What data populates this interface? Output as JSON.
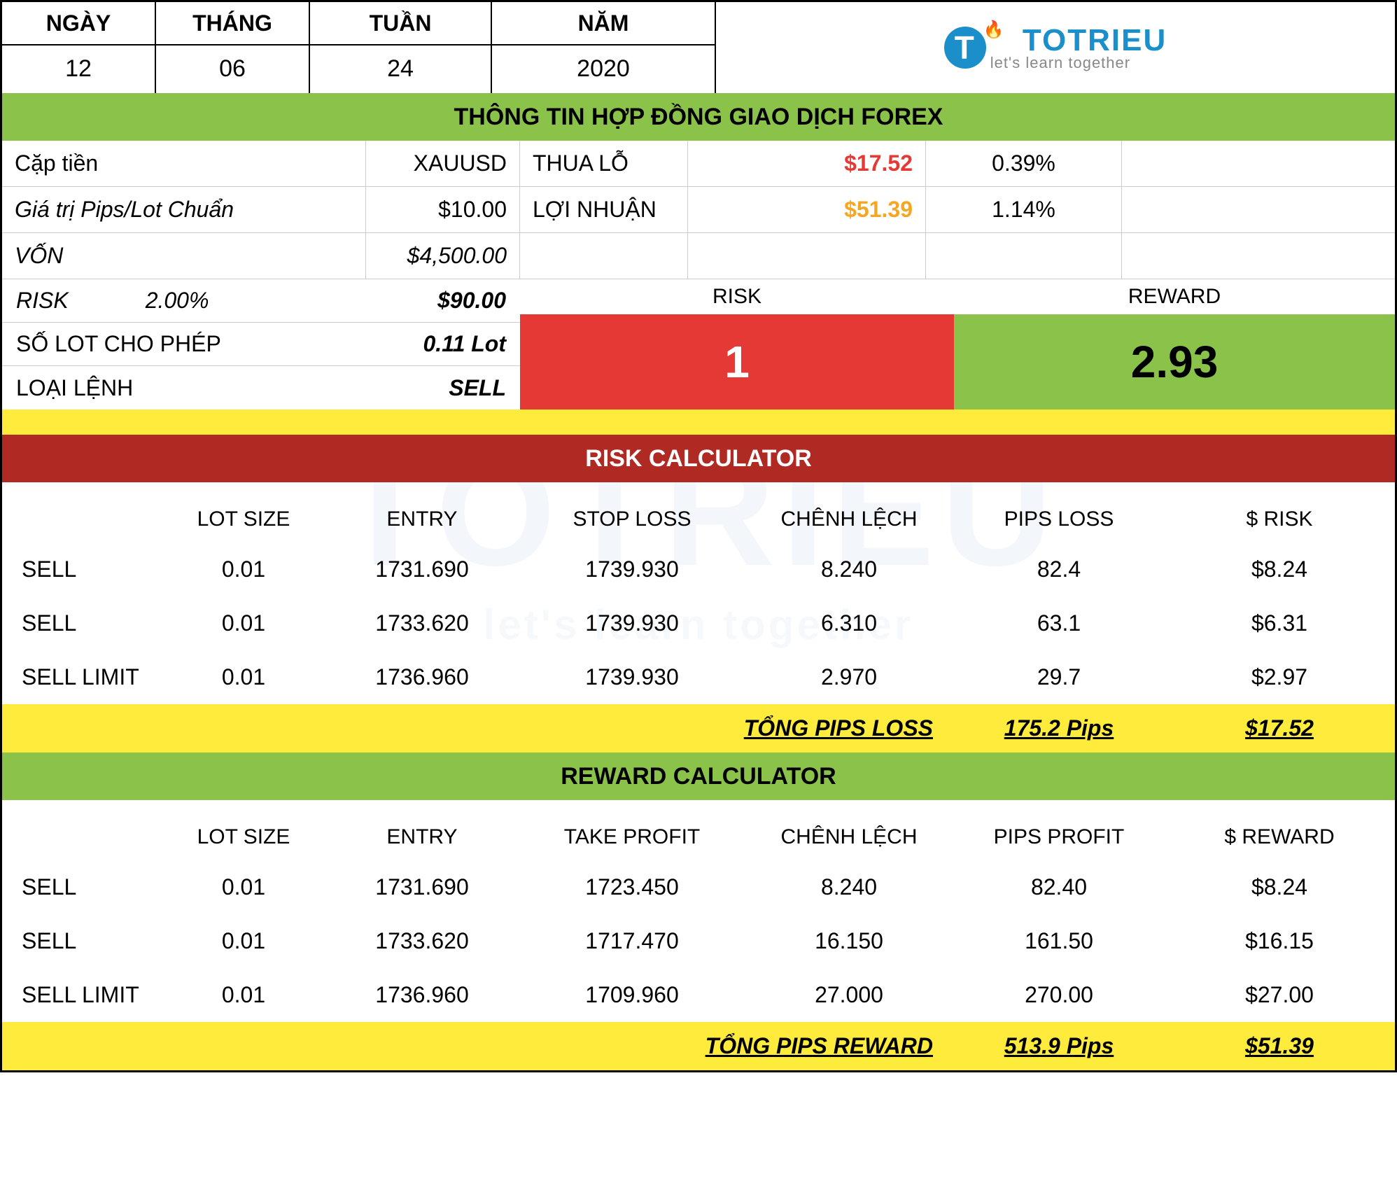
{
  "date": {
    "labels": {
      "day": "NGÀY",
      "month": "THÁNG",
      "week": "TUẦN",
      "year": "NĂM"
    },
    "values": {
      "day": "12",
      "month": "06",
      "week": "24",
      "year": "2020"
    }
  },
  "logo": {
    "name": "TOTRIEU",
    "tag": "let's learn together"
  },
  "section_titles": {
    "contract": "THÔNG TIN HỢP ĐỒNG GIAO DỊCH FOREX",
    "risk_calc": "RISK CALCULATOR",
    "reward_calc": "REWARD CALCULATOR"
  },
  "contract": {
    "pair_label": "Cặp tiền",
    "pair_value": "XAUUSD",
    "loss_label": "THUA LỖ",
    "loss_value": "$17.52",
    "loss_pct": "0.39%",
    "pip_label": "Giá trị Pips/Lot Chuẩn",
    "pip_value": "$10.00",
    "profit_label": "LỢI NHUẬN",
    "profit_value": "$51.39",
    "profit_pct": "1.14%",
    "capital_label": "VỐN",
    "capital_value": "$4,500.00",
    "risk_label": "RISK",
    "risk_pct": "2.00%",
    "risk_value": "$90.00",
    "lot_label": "SỐ LOT CHO PHÉP",
    "lot_value": "0.11 Lot",
    "order_label": "LOẠI LỆNH",
    "order_value": "SELL",
    "rr_risk_label": "RISK",
    "rr_reward_label": "REWARD",
    "rr_risk_value": "1",
    "rr_reward_value": "2.93"
  },
  "risk_table": {
    "headers": [
      "",
      "LOT SIZE",
      "ENTRY",
      "STOP LOSS",
      "CHÊNH LỆCH",
      "PIPS LOSS",
      "$ RISK"
    ],
    "rows": [
      [
        "SELL",
        "0.01",
        "1731.690",
        "1739.930",
        "8.240",
        "82.4",
        "$8.24"
      ],
      [
        "SELL",
        "0.01",
        "1733.620",
        "1739.930",
        "6.310",
        "63.1",
        "$6.31"
      ],
      [
        "SELL LIMIT",
        "0.01",
        "1736.960",
        "1739.930",
        "2.970",
        "29.7",
        "$2.97"
      ]
    ],
    "total_label": "TỔNG PIPS LOSS",
    "total_pips": "175.2 Pips",
    "total_usd": "$17.52"
  },
  "reward_table": {
    "headers": [
      "",
      "LOT SIZE",
      "ENTRY",
      "TAKE PROFIT",
      "CHÊNH LỆCH",
      "PIPS PROFIT",
      "$ REWARD"
    ],
    "rows": [
      [
        "SELL",
        "0.01",
        "1731.690",
        "1723.450",
        "8.240",
        "82.40",
        "$8.24"
      ],
      [
        "SELL",
        "0.01",
        "1733.620",
        "1717.470",
        "16.150",
        "161.50",
        "$16.15"
      ],
      [
        "SELL LIMIT",
        "0.01",
        "1736.960",
        "1709.960",
        "27.000",
        "270.00",
        "$27.00"
      ]
    ],
    "total_label": "TỔNG PIPS REWARD",
    "total_pips": "513.9 Pips",
    "total_usd": "$51.39"
  },
  "colors": {
    "green": "#8bc34a",
    "red": "#e53935",
    "dark_red": "#b02a24",
    "yellow": "#ffeb3b",
    "orange": "#f5a623",
    "blue": "#1a8fc9"
  }
}
